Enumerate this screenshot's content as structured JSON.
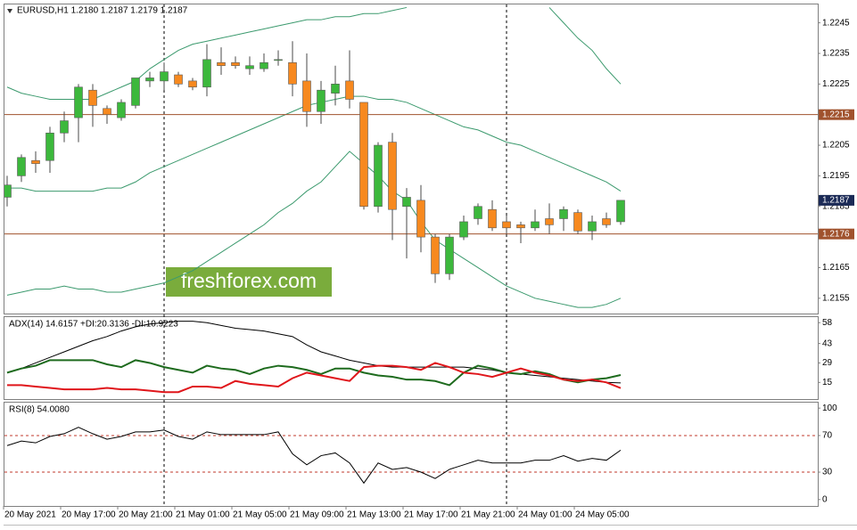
{
  "chart_data": [
    {
      "type": "candlestick",
      "title": "EURUSD,H1  1.2180 1.2187 1.2179 1.2187",
      "categories": [
        "20 May 2021",
        null,
        null,
        null,
        "20 May 17:00",
        null,
        null,
        null,
        "20 May 21:00",
        null,
        null,
        null,
        "21 May 01:00",
        null,
        null,
        null,
        "21 May 05:00",
        null,
        null,
        null,
        "21 May 09:00",
        null,
        null,
        null,
        "21 May 13:00",
        null,
        null,
        null,
        "21 May 17:00",
        null,
        null,
        null,
        "21 May 21:00",
        null,
        null,
        null,
        "24 May 01:00",
        null,
        null,
        null,
        "24 May 05:00",
        null,
        null,
        null
      ],
      "open": [
        1.2188,
        1.2195,
        1.22,
        1.22,
        1.2209,
        1.2214,
        1.2223,
        1.2217,
        1.2214,
        1.2218,
        1.2226,
        1.2226,
        1.2228,
        1.2226,
        1.2224,
        1.2232,
        1.2232,
        1.223,
        1.223,
        1.2233,
        1.2232,
        1.2226,
        1.2216,
        1.2222,
        1.2226,
        1.2219,
        1.2185,
        1.2206,
        1.2185,
        1.2187,
        1.2175,
        1.2163,
        1.2175,
        1.2181,
        1.2184,
        1.218,
        1.2179,
        1.2178,
        1.2181,
        1.2181,
        1.2183,
        1.2177,
        1.2181,
        1.218
      ],
      "high": [
        1.2195,
        1.2202,
        1.2203,
        1.2211,
        1.2216,
        1.2225,
        1.2225,
        1.2218,
        1.222,
        1.2227,
        1.2229,
        1.2232,
        1.2229,
        1.2227,
        1.2238,
        1.2237,
        1.2234,
        1.2234,
        1.2235,
        1.2236,
        1.2239,
        1.2235,
        1.2226,
        1.2231,
        1.2236,
        1.2219,
        1.2206,
        1.2209,
        1.2191,
        1.2192,
        1.2176,
        1.2176,
        1.2182,
        1.2186,
        1.2187,
        1.2182,
        1.218,
        1.2184,
        1.2186,
        1.2185,
        1.2184,
        1.2182,
        1.2183,
        1.2187
      ],
      "low": [
        1.2185,
        1.2193,
        1.2196,
        1.2196,
        1.2206,
        1.2206,
        1.2211,
        1.2212,
        1.2213,
        1.2217,
        1.2224,
        1.2223,
        1.2224,
        1.2223,
        1.2221,
        1.2228,
        1.223,
        1.2228,
        1.2229,
        1.2231,
        1.2221,
        1.2211,
        1.2212,
        1.2218,
        1.2217,
        1.2184,
        1.2183,
        1.2174,
        1.2168,
        1.217,
        1.216,
        1.2161,
        1.2174,
        1.2179,
        1.2177,
        1.2176,
        1.2173,
        1.2177,
        1.2176,
        1.2177,
        1.2176,
        1.2174,
        1.2178,
        1.2179
      ],
      "close": [
        1.2192,
        1.2201,
        1.2199,
        1.2209,
        1.2213,
        1.2224,
        1.2218,
        1.2215,
        1.2219,
        1.2227,
        1.2227,
        1.2229,
        1.2225,
        1.2224,
        1.2233,
        1.2231,
        1.2231,
        1.2231,
        1.2232,
        1.2233,
        1.2225,
        1.2216,
        1.2223,
        1.2225,
        1.222,
        1.2185,
        1.2205,
        1.2184,
        1.2188,
        1.2175,
        1.2163,
        1.2175,
        1.218,
        1.2185,
        1.2178,
        1.2178,
        1.2178,
        1.218,
        1.2179,
        1.2184,
        1.2177,
        1.218,
        1.2179,
        1.2187
      ],
      "up_color": "#3cb83c",
      "down_color": "#f7891f",
      "bands": [
        {
          "color": "#3c9a6e",
          "values": [
            1.2224,
            1.2222,
            1.2221,
            1.222,
            1.222,
            1.222,
            1.222,
            1.2222,
            1.2224,
            1.2226,
            1.223,
            1.2233,
            1.2236,
            1.2238,
            1.2239,
            1.224,
            1.2241,
            1.2242,
            1.2243,
            1.2244,
            1.2245,
            1.2246,
            1.2246,
            1.2247,
            1.2247,
            1.2248,
            1.2248,
            1.2249,
            1.225,
            null,
            null,
            null,
            null,
            null,
            null,
            null,
            null,
            null,
            1.225,
            1.2245,
            1.224,
            1.2236,
            1.223,
            1.2225
          ]
        },
        {
          "color": "#3c9a6e",
          "values": [
            1.2191,
            1.2191,
            1.219,
            1.219,
            1.219,
            1.219,
            1.219,
            1.2191,
            1.2191,
            1.2193,
            1.2196,
            1.2198,
            1.22,
            1.2202,
            1.2204,
            1.2206,
            1.2208,
            1.221,
            1.2212,
            1.2214,
            1.2216,
            1.2218,
            1.2219,
            1.222,
            1.2221,
            1.2221,
            1.222,
            1.222,
            1.2219,
            1.2217,
            1.2215,
            1.2213,
            1.2211,
            1.221,
            1.2208,
            1.2206,
            1.2205,
            1.2203,
            1.2201,
            1.2199,
            1.2197,
            1.2195,
            1.2193,
            1.219
          ]
        },
        {
          "color": "#3c9a6e",
          "values": [
            1.2156,
            1.2157,
            1.2158,
            1.2158,
            1.2159,
            1.2158,
            1.2158,
            1.2157,
            1.2157,
            1.2158,
            1.2159,
            1.216,
            1.2162,
            1.2164,
            1.2167,
            1.217,
            1.2173,
            1.2176,
            1.2179,
            1.2183,
            1.2186,
            1.219,
            1.2193,
            1.2198,
            1.2203,
            1.2199,
            1.2195,
            1.219,
            1.2187,
            1.218,
            1.2174,
            1.2171,
            1.2168,
            1.2165,
            1.2162,
            1.2159,
            1.2157,
            1.2155,
            1.2154,
            1.2153,
            1.2152,
            1.2152,
            1.2153,
            1.2155
          ]
        }
      ],
      "hlines": [
        {
          "value": 1.2215,
          "color": "#a0522d"
        },
        {
          "value": 1.2176,
          "color": "#a0522d"
        }
      ],
      "watermark": "freshforex.com",
      "ylim": [
        1.215,
        1.2251
      ],
      "yticks": [
        1.2245,
        1.2235,
        1.2225,
        1.2205,
        1.2195,
        1.2185,
        1.2165,
        1.2155
      ]
    },
    {
      "type": "line",
      "title": "ADX(14) 14.6157 +DI:20.3136 -DI:10.9223",
      "series": [
        {
          "color": "#000000",
          "values": [
            22,
            25,
            29,
            33,
            37,
            41,
            45,
            48,
            52,
            55,
            57,
            58,
            59,
            59,
            58,
            56,
            54,
            53,
            52,
            50,
            48,
            42,
            37,
            34,
            31,
            29,
            27,
            26,
            26,
            26,
            26,
            26,
            26,
            25,
            24,
            22,
            21,
            20,
            19,
            18,
            17,
            16,
            15,
            14.6157
          ]
        },
        {
          "color": "#1e6b1e",
          "values": [
            22,
            25,
            27,
            31,
            31,
            31,
            31,
            28,
            26,
            31,
            29,
            26,
            24,
            22,
            27,
            25,
            24,
            21,
            25,
            27,
            26,
            24,
            21,
            25,
            25,
            22,
            20,
            19,
            17,
            17,
            16,
            13,
            22,
            27,
            25,
            22,
            21,
            23,
            21,
            17,
            15,
            17,
            18,
            20.3136
          ]
        },
        {
          "color": "#e0161b",
          "values": [
            13,
            13,
            12,
            11,
            10,
            10,
            10,
            11,
            10,
            10,
            9,
            8,
            8,
            12,
            12,
            11,
            16,
            14,
            13,
            12,
            18,
            22,
            20,
            18,
            16,
            26,
            27,
            27,
            26,
            24,
            29,
            26,
            22,
            21,
            19,
            22,
            25,
            22,
            20,
            17,
            16,
            17,
            15,
            10.9223
          ]
        }
      ],
      "ylim": [
        3,
        62
      ],
      "yticks": [
        58,
        43,
        29,
        15
      ]
    },
    {
      "type": "line",
      "title": "RSI(8) 54.0080",
      "series": [
        {
          "color": "#000000",
          "values": [
            59,
            64,
            62,
            69,
            72,
            79,
            72,
            66,
            69,
            74,
            74,
            76,
            69,
            66,
            74,
            71,
            71,
            71,
            71,
            74,
            50,
            38,
            48,
            51,
            40,
            18,
            40,
            33,
            35,
            30,
            23,
            33,
            38,
            43,
            40,
            40,
            40,
            43,
            43,
            48,
            42,
            45,
            43,
            54.008
          ]
        }
      ],
      "levels": [
        70,
        30
      ],
      "level_color": "#c0392b",
      "ylim": [
        -7,
        106
      ],
      "yticks": [
        100,
        70,
        30,
        0
      ]
    }
  ]
}
